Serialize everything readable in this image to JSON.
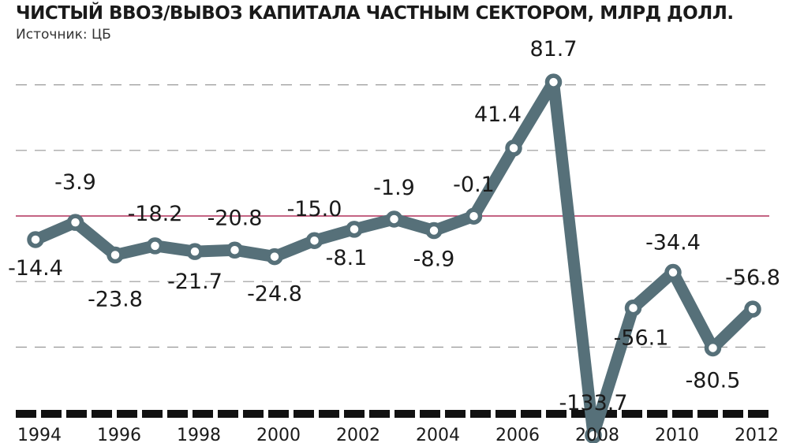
{
  "title": "ЧИСТЫЙ ВВОЗ/ВЫВОЗ КАПИТАЛА ЧАСТНЫМ СЕКТОРОМ, МЛРД ДОЛЛ.",
  "source": "Источник: ЦБ",
  "colors": {
    "line": "#567079",
    "zero_line": "#b0305a",
    "grid": "#999999",
    "axis": "#111111"
  },
  "chart_data": {
    "type": "line",
    "title": "ЧИСТЫЙ ВВОЗ/ВЫВОЗ КАПИТАЛА ЧАСТНЫМ СЕКТОРОМ, МЛРД ДОЛЛ.",
    "xlabel": "",
    "ylabel": "",
    "x": [
      1994,
      1995,
      1996,
      1997,
      1998,
      1999,
      2000,
      2001,
      2002,
      2003,
      2004,
      2005,
      2006,
      2007,
      2008,
      2009,
      2010,
      2011,
      2012
    ],
    "values": [
      -14.4,
      -3.9,
      -23.8,
      -18.2,
      -21.7,
      -20.8,
      -24.8,
      -15.0,
      -8.1,
      -1.9,
      -8.9,
      -0.1,
      41.4,
      81.7,
      -133.7,
      -56.1,
      -34.4,
      -80.5,
      -56.8
    ],
    "labels": [
      "-14.4",
      "-3.9",
      "-23.8",
      "-18.2",
      "-21.7",
      "-20.8",
      "-24.8",
      "-15.0",
      "-8.1",
      "-1.9",
      "-8.9",
      "-0.1",
      "41.4",
      "81.7",
      "-133.7",
      "-56.1",
      "-34.4",
      "-80.5",
      "-56.8"
    ],
    "xticks": [
      "1994",
      "1996",
      "1998",
      "2000",
      "2002",
      "2004",
      "2006",
      "2008",
      "2010",
      "2012"
    ],
    "ylim": [
      -145,
      104
    ],
    "grid": true,
    "zero_line": true
  }
}
